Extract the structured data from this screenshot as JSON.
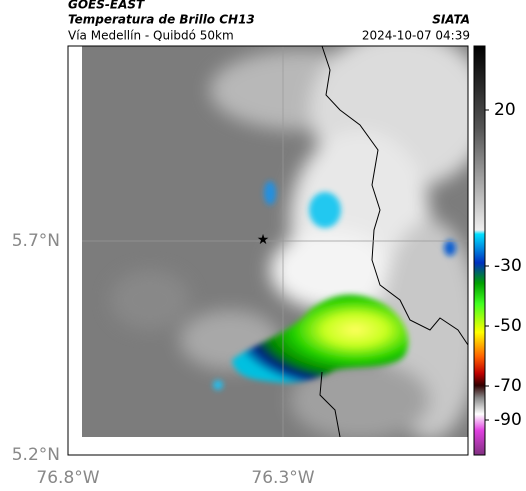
{
  "header": {
    "title": "GOES-EAST",
    "subtitle": "Temperatura de Brillo CH13",
    "source": "SIATA",
    "region": "Vía Medellín - Quibdó 50km",
    "timestamp": "2024-10-07 04:39"
  },
  "axes": {
    "lat_labels": [
      "5.7°N",
      "5.2°N"
    ],
    "lon_labels": [
      "76.8°W",
      "76.3°W"
    ]
  },
  "colorbar": {
    "ticks": [
      20,
      -30,
      -50,
      -70,
      -90
    ]
  }
}
